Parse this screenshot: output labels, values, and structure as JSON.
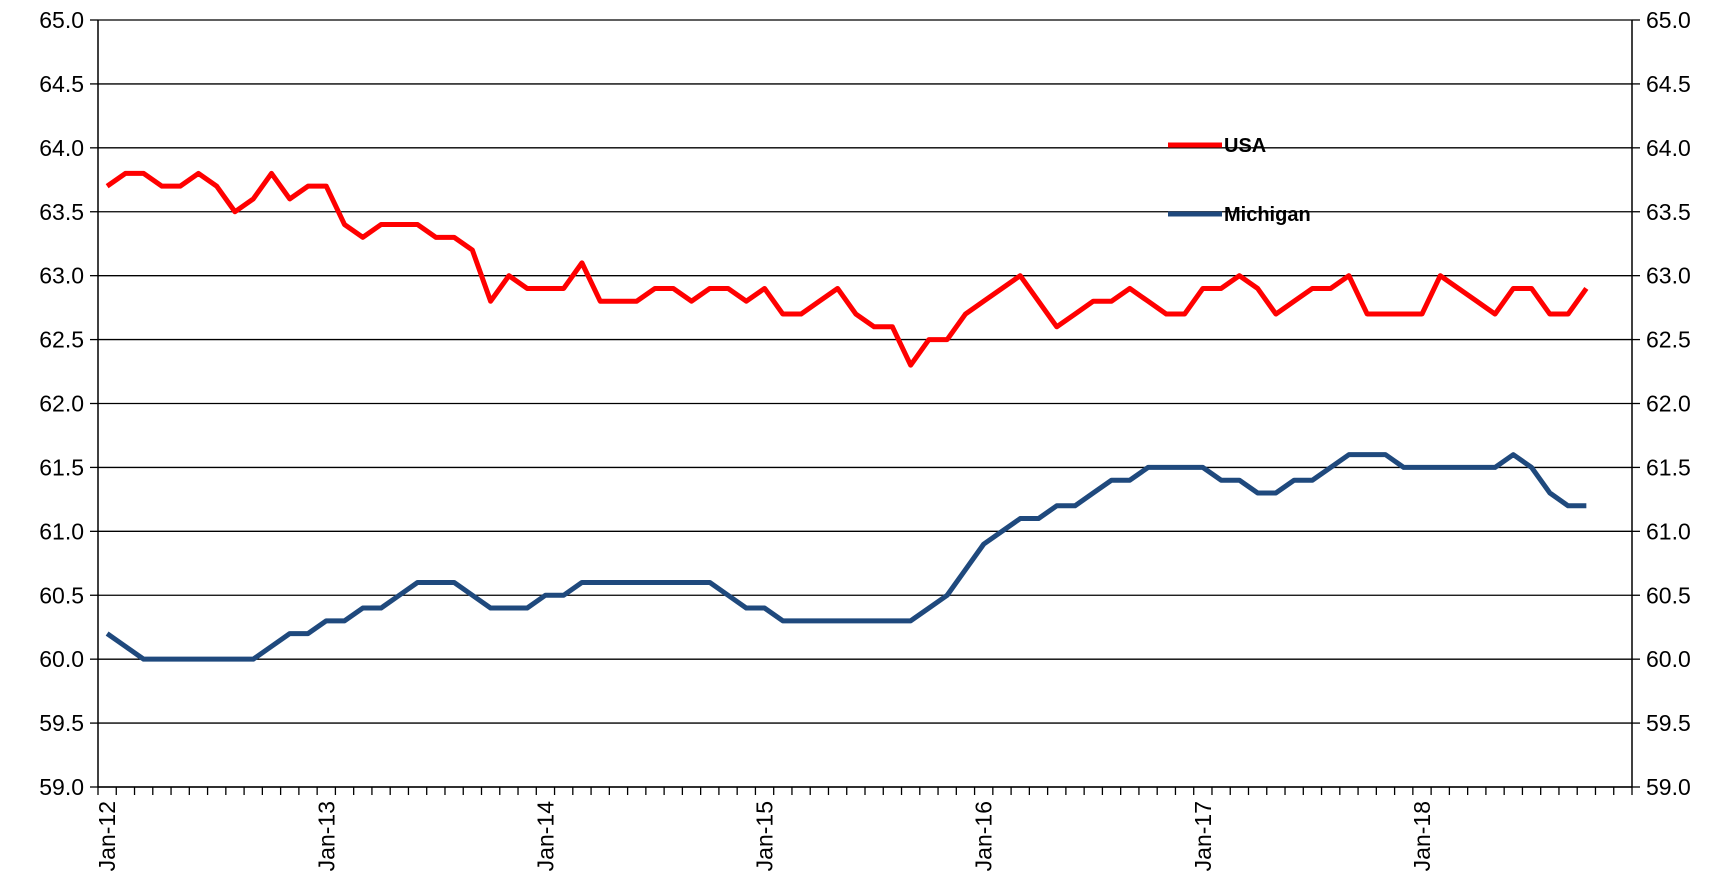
{
  "chart_data": {
    "type": "line",
    "categories": [
      "Jan-12",
      null,
      null,
      null,
      null,
      null,
      null,
      null,
      null,
      null,
      null,
      null,
      "Jan-13",
      null,
      null,
      null,
      null,
      null,
      null,
      null,
      null,
      null,
      null,
      null,
      "Jan-14",
      null,
      null,
      null,
      null,
      null,
      null,
      null,
      null,
      null,
      null,
      null,
      "Jan-15",
      null,
      null,
      null,
      null,
      null,
      null,
      null,
      null,
      null,
      null,
      null,
      "Jan-16",
      null,
      null,
      null,
      null,
      null,
      null,
      null,
      null,
      null,
      null,
      null,
      "Jan-17",
      null,
      null,
      null,
      null,
      null,
      null,
      null,
      null,
      null,
      null,
      null,
      "Jan-18",
      null,
      null,
      null,
      null,
      null,
      null,
      null,
      null,
      null,
      null,
      null
    ],
    "series": [
      {
        "name": "USA",
        "color": "#ff0000",
        "values": [
          63.7,
          63.8,
          63.8,
          63.7,
          63.7,
          63.8,
          63.7,
          63.5,
          63.6,
          63.8,
          63.6,
          63.7,
          63.7,
          63.4,
          63.3,
          63.4,
          63.4,
          63.4,
          63.3,
          63.3,
          63.2,
          62.8,
          63.0,
          62.9,
          62.9,
          62.9,
          63.1,
          62.8,
          62.8,
          62.8,
          62.9,
          62.9,
          62.8,
          62.9,
          62.9,
          62.8,
          62.9,
          62.7,
          62.7,
          62.8,
          62.9,
          62.7,
          62.6,
          62.6,
          62.3,
          62.5,
          62.5,
          62.7,
          62.8,
          62.9,
          63.0,
          62.8,
          62.6,
          62.7,
          62.8,
          62.8,
          62.9,
          62.8,
          62.7,
          62.7,
          62.9,
          62.9,
          63.0,
          62.9,
          62.7,
          62.8,
          62.9,
          62.9,
          63.0,
          62.7,
          62.7,
          62.7,
          62.7,
          63.0,
          62.9,
          62.8,
          62.7,
          62.9,
          62.9,
          62.7,
          62.7,
          62.9,
          null,
          null
        ]
      },
      {
        "name": "Michigan",
        "color": "#1f497d",
        "values": [
          60.2,
          60.1,
          60.0,
          60.0,
          60.0,
          60.0,
          60.0,
          60.0,
          60.0,
          60.1,
          60.2,
          60.2,
          60.3,
          60.3,
          60.4,
          60.4,
          60.5,
          60.6,
          60.6,
          60.6,
          60.5,
          60.4,
          60.4,
          60.4,
          60.5,
          60.5,
          60.6,
          60.6,
          60.6,
          60.6,
          60.6,
          60.6,
          60.6,
          60.6,
          60.5,
          60.4,
          60.4,
          60.3,
          60.3,
          60.3,
          60.3,
          60.3,
          60.3,
          60.3,
          60.3,
          60.4,
          60.5,
          60.7,
          60.9,
          61.0,
          61.1,
          61.1,
          61.2,
          61.2,
          61.3,
          61.4,
          61.4,
          61.5,
          61.5,
          61.5,
          61.5,
          61.4,
          61.4,
          61.3,
          61.3,
          61.4,
          61.4,
          61.5,
          61.6,
          61.6,
          61.6,
          61.5,
          61.5,
          61.5,
          61.5,
          61.5,
          61.5,
          61.6,
          61.5,
          61.3,
          61.2,
          61.2,
          null,
          null
        ]
      }
    ],
    "ylim": [
      59,
      65
    ],
    "yticks": [
      {
        "value": 59,
        "label": "59.0"
      },
      {
        "value": 59.5,
        "label": "59.5"
      },
      {
        "value": 60,
        "label": "60.0"
      },
      {
        "value": 60.5,
        "label": "60.5"
      },
      {
        "value": 61,
        "label": "61.0"
      },
      {
        "value": 61.5,
        "label": "61.5"
      },
      {
        "value": 62,
        "label": "62.0"
      },
      {
        "value": 62.5,
        "label": "62.5"
      },
      {
        "value": 63,
        "label": "63.0"
      },
      {
        "value": 63.5,
        "label": "63.5"
      },
      {
        "value": 64,
        "label": "64.0"
      },
      {
        "value": 64.5,
        "label": "64.5"
      },
      {
        "value": 65,
        "label": "65.0"
      }
    ],
    "y2lim": [
      59,
      65
    ],
    "y2ticks": [
      {
        "value": 59,
        "label": "59.0"
      },
      {
        "value": 59.5,
        "label": "59.5"
      },
      {
        "value": 60,
        "label": "60.0"
      },
      {
        "value": 60.5,
        "label": "60.5"
      },
      {
        "value": 61,
        "label": "61.0"
      },
      {
        "value": 61.5,
        "label": "61.5"
      },
      {
        "value": 62,
        "label": "62.0"
      },
      {
        "value": 62.5,
        "label": "62.5"
      },
      {
        "value": 63,
        "label": "63.0"
      },
      {
        "value": 63.5,
        "label": "63.5"
      },
      {
        "value": 64,
        "label": "64.0"
      },
      {
        "value": 64.5,
        "label": "64.5"
      },
      {
        "value": 65,
        "label": "65.0"
      }
    ],
    "grid": true
  }
}
